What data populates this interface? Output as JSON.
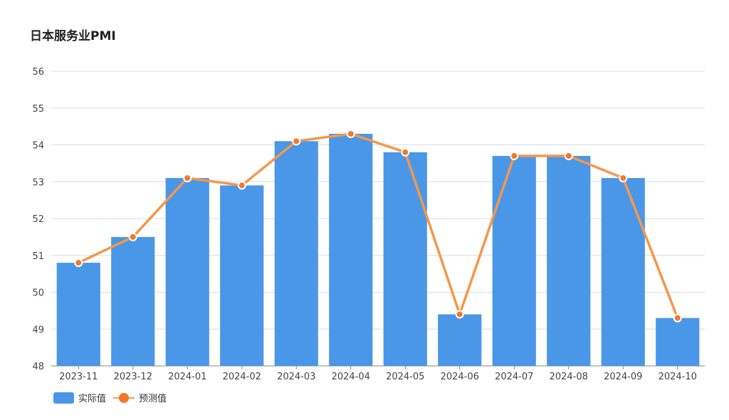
{
  "chart_data": {
    "type": "bar",
    "title": "日本服务业PMI",
    "categories": [
      "2023-11",
      "2023-12",
      "2024-01",
      "2024-02",
      "2024-03",
      "2024-04",
      "2024-05",
      "2024-06",
      "2024-07",
      "2024-08",
      "2024-09",
      "2024-10"
    ],
    "series": [
      {
        "name": "实际值",
        "type": "bar",
        "color": "#4a97e8",
        "values": [
          50.8,
          51.5,
          53.1,
          52.9,
          54.1,
          54.3,
          53.8,
          49.4,
          53.7,
          53.7,
          53.1,
          49.3
        ]
      },
      {
        "name": "预测值",
        "type": "line",
        "color": "#f4974a",
        "marker_color": "#f4782a",
        "values": [
          50.8,
          51.5,
          53.1,
          52.9,
          54.1,
          54.3,
          53.8,
          49.4,
          53.7,
          53.7,
          53.1,
          49.3
        ]
      }
    ],
    "ylim": [
      48,
      56
    ],
    "yticks": [
      48,
      49,
      50,
      51,
      52,
      53,
      54,
      55,
      56
    ],
    "grid": true,
    "legend_position": "bottom-left"
  }
}
